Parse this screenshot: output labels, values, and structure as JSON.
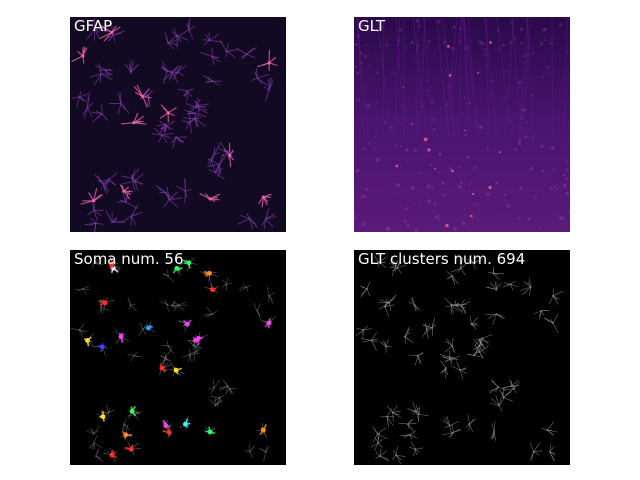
{
  "panels": [
    {
      "id": "gfap",
      "label": "GFAP"
    },
    {
      "id": "glt",
      "label": "GLT"
    },
    {
      "id": "soma",
      "label": "Soma num. 56"
    },
    {
      "id": "glt-clusters",
      "label": "GLT clusters num. 694"
    }
  ],
  "colors": {
    "gfap_background": "#120a22",
    "glt_background": "#3a0f5a",
    "mask_background": "#000000",
    "astrocyte_pink": "#e040a0",
    "cluster_gray": "#8a8a8a"
  }
}
